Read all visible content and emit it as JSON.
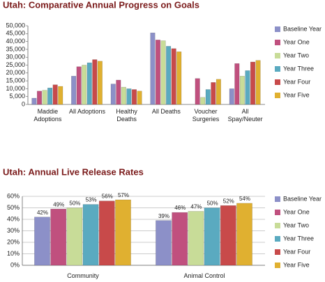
{
  "chart_data": [
    {
      "type": "bar",
      "title": "Utah: Comparative Annual Progress on Goals",
      "categories": [
        "Maddie Adoptions",
        "All Adoptions",
        "Healthy Deaths",
        "All Deaths",
        "Voucher Surgeries",
        "All Spay/Neuter"
      ],
      "series": [
        {
          "name": "Baseline Year",
          "color": "#8c90c8",
          "values": [
            4000,
            18000,
            13000,
            45500,
            null,
            10000
          ]
        },
        {
          "name": "Year One",
          "color": "#c0507e",
          "values": [
            8500,
            24000,
            15500,
            41000,
            16500,
            26000
          ]
        },
        {
          "name": "Year Two",
          "color": "#c8dc98",
          "values": [
            9000,
            25000,
            11000,
            40500,
            4500,
            18000
          ]
        },
        {
          "name": "Year Three",
          "color": "#5aaac0",
          "values": [
            10500,
            26500,
            10000,
            37000,
            9500,
            21500
          ]
        },
        {
          "name": "Year Four",
          "color": "#c84a4a",
          "values": [
            12500,
            28500,
            9500,
            35500,
            14000,
            27000
          ]
        },
        {
          "name": "Year Five",
          "color": "#e0b030",
          "values": [
            11500,
            27500,
            8500,
            33500,
            16000,
            28000
          ]
        }
      ],
      "ylim": [
        0,
        50000
      ],
      "yticks": [
        0,
        {
          "value": 5000,
          "label": "5,000"
        },
        {
          "value": 10000,
          "label": "10,000"
        },
        {
          "value": 15000,
          "label": "15,000"
        },
        {
          "value": 20000,
          "label": "20,000"
        },
        {
          "value": 25000,
          "label": "25,000"
        },
        {
          "value": 30000,
          "label": "30,000"
        },
        {
          "value": 35000,
          "label": "35,000"
        },
        {
          "value": 40000,
          "label": "40,000"
        },
        {
          "value": 45000,
          "label": "45,000"
        },
        {
          "value": 50000,
          "label": "50,000"
        }
      ],
      "grid": false,
      "legend": "right"
    },
    {
      "type": "bar",
      "title": "Utah: Annual Live Release Rates",
      "categories": [
        "Community",
        "Animal Control"
      ],
      "series": [
        {
          "name": "Baseline Year",
          "color": "#8c90c8",
          "values": [
            42,
            39
          ],
          "value_labels": [
            "42%",
            "39%"
          ]
        },
        {
          "name": "Year One",
          "color": "#c0507e",
          "values": [
            49,
            46
          ],
          "value_labels": [
            "49%",
            "46%"
          ]
        },
        {
          "name": "Year Two",
          "color": "#c8dc98",
          "values": [
            50,
            47
          ],
          "value_labels": [
            "50%",
            "47%"
          ]
        },
        {
          "name": "Year Three",
          "color": "#5aaac0",
          "values": [
            53,
            50
          ],
          "value_labels": [
            "53%",
            "50%"
          ]
        },
        {
          "name": "Year Four",
          "color": "#c84a4a",
          "values": [
            56,
            52
          ],
          "value_labels": [
            "56%",
            "52%"
          ]
        },
        {
          "name": "Year Five",
          "color": "#e0b030",
          "values": [
            57,
            54
          ],
          "value_labels": [
            "57%",
            "54%"
          ]
        }
      ],
      "ylim": [
        0,
        60
      ],
      "yticks": [
        {
          "value": 0,
          "label": "0%"
        },
        {
          "value": 10,
          "label": "10%"
        },
        {
          "value": 20,
          "label": "20%"
        },
        {
          "value": 30,
          "label": "30%"
        },
        {
          "value": 40,
          "label": "40%"
        },
        {
          "value": 50,
          "label": "50%"
        },
        {
          "value": 60,
          "label": "60%"
        }
      ],
      "grid": true,
      "legend": "right"
    }
  ]
}
